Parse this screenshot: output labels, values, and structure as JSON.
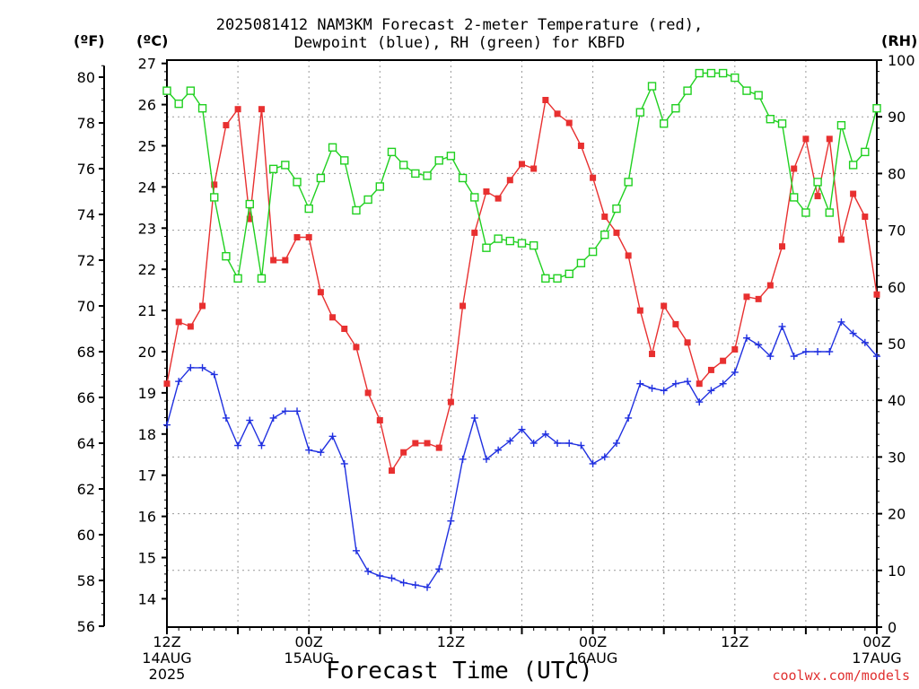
{
  "title": {
    "line1": "2025081412 NAM3KM Forecast 2-meter Temperature (red),",
    "line2": "Dewpoint (blue), RH (green) for KBFD"
  },
  "units": {
    "f": "(ºF)",
    "c": "(ºC)",
    "rh": "(RH)"
  },
  "xlabel": "Forecast Time (UTC)",
  "credit": "coolwx.com/models",
  "chart_data": {
    "type": "line",
    "x_axis": {
      "label": "Forecast Time (UTC)",
      "unit": "forecast hour",
      "range": [
        0,
        60
      ],
      "ticks": [
        {
          "hour": 0,
          "lines": [
            "12Z",
            "14AUG",
            "2025"
          ]
        },
        {
          "hour": 12,
          "lines": [
            "00Z",
            "15AUG"
          ]
        },
        {
          "hour": 24,
          "lines": [
            "12Z"
          ]
        },
        {
          "hour": 36,
          "lines": [
            "00Z",
            "16AUG"
          ]
        },
        {
          "hour": 48,
          "lines": [
            "12Z"
          ]
        },
        {
          "hour": 60,
          "lines": [
            "00Z",
            "17AUG"
          ]
        }
      ]
    },
    "y_axis_f": {
      "label": "(ºF)",
      "range": [
        56,
        80.5
      ],
      "ticks": [
        56,
        58,
        60,
        62,
        64,
        66,
        68,
        70,
        72,
        74,
        76,
        78,
        80
      ]
    },
    "y_axis_c": {
      "label": "(ºC)",
      "range": [
        13.33,
        27
      ],
      "ticks": [
        14,
        15,
        16,
        17,
        18,
        19,
        20,
        21,
        22,
        23,
        24,
        25,
        26,
        27
      ]
    },
    "y_axis_rh": {
      "label": "(RH)",
      "range": [
        0,
        100
      ],
      "ticks": [
        0,
        10,
        20,
        30,
        40,
        50,
        60,
        70,
        80,
        90,
        100
      ]
    },
    "grid": true,
    "series": [
      {
        "key": "temperature",
        "color": "#e83030",
        "marker": "filled-square",
        "axis": "f",
        "x": [
          0,
          1,
          2,
          3,
          4,
          5,
          6,
          7,
          8,
          9,
          10,
          11,
          12,
          13,
          14,
          15,
          16,
          17,
          18,
          19,
          20,
          21,
          22,
          23,
          24,
          25,
          26,
          27,
          28,
          29,
          30,
          31,
          32,
          33,
          34,
          35,
          36,
          37,
          38,
          39,
          40,
          41,
          42,
          43,
          44,
          45,
          46,
          47,
          48,
          49,
          50,
          51,
          52,
          53,
          54,
          55,
          56,
          57,
          58,
          59,
          60
        ],
        "values": [
          66.6,
          69.3,
          69.1,
          70.0,
          75.3,
          77.9,
          78.6,
          73.8,
          78.6,
          72.0,
          72.0,
          73.0,
          73.0,
          70.6,
          69.5,
          69.0,
          68.2,
          66.2,
          65.0,
          62.8,
          63.6,
          64.0,
          64.0,
          63.8,
          65.8,
          70.0,
          73.2,
          75.0,
          74.7,
          75.5,
          76.2,
          76.0,
          79.0,
          78.4,
          78.0,
          77.0,
          75.6,
          73.9,
          73.2,
          72.2,
          69.8,
          67.9,
          70.0,
          69.2,
          68.4,
          66.6,
          67.2,
          67.6,
          68.1,
          70.4,
          70.3,
          70.9,
          72.6,
          76.0,
          77.3,
          74.8,
          77.3,
          72.9,
          74.9,
          73.9,
          70.5
        ]
      },
      {
        "key": "dewpoint",
        "color": "#2030e0",
        "marker": "plus",
        "axis": "f",
        "x": [
          0,
          1,
          2,
          3,
          4,
          5,
          6,
          7,
          8,
          9,
          10,
          11,
          12,
          13,
          14,
          15,
          16,
          17,
          18,
          19,
          20,
          21,
          22,
          23,
          24,
          25,
          26,
          27,
          28,
          29,
          30,
          31,
          32,
          33,
          34,
          35,
          36,
          37,
          38,
          39,
          40,
          41,
          42,
          43,
          44,
          45,
          46,
          47,
          48,
          49,
          50,
          51,
          52,
          53,
          54,
          55,
          56,
          57,
          58,
          59,
          60
        ],
        "values": [
          64.8,
          66.7,
          67.3,
          67.3,
          67.0,
          65.1,
          63.9,
          65.0,
          63.9,
          65.1,
          65.4,
          65.4,
          63.7,
          63.6,
          64.3,
          63.1,
          59.3,
          58.4,
          58.2,
          58.1,
          57.9,
          57.8,
          57.7,
          58.5,
          60.6,
          63.3,
          65.1,
          63.3,
          63.7,
          64.1,
          64.6,
          64.0,
          64.4,
          64.0,
          64.0,
          63.9,
          63.1,
          63.4,
          64.0,
          65.1,
          66.6,
          66.4,
          66.3,
          66.6,
          66.7,
          65.8,
          66.3,
          66.6,
          67.1,
          68.6,
          68.3,
          67.8,
          69.1,
          67.8,
          68.0,
          68.0,
          68.0,
          69.3,
          68.8,
          68.4,
          67.8
        ]
      },
      {
        "key": "rh",
        "color": "#20d020",
        "marker": "open-square",
        "axis": "rh",
        "x": [
          0,
          1,
          2,
          3,
          4,
          5,
          6,
          7,
          8,
          9,
          10,
          11,
          12,
          13,
          14,
          15,
          16,
          17,
          18,
          19,
          20,
          21,
          22,
          23,
          24,
          25,
          26,
          27,
          28,
          29,
          30,
          31,
          32,
          33,
          34,
          35,
          36,
          37,
          38,
          39,
          40,
          41,
          42,
          43,
          44,
          45,
          46,
          47,
          48,
          49,
          50,
          51,
          52,
          53,
          54,
          55,
          56,
          57,
          58,
          59,
          60
        ],
        "values": [
          94.6,
          92.3,
          94.6,
          91.5,
          75.8,
          65.4,
          61.5,
          74.6,
          61.5,
          80.8,
          81.5,
          78.5,
          73.8,
          79.2,
          84.6,
          82.3,
          73.5,
          75.4,
          77.7,
          83.8,
          81.5,
          80.0,
          79.6,
          82.3,
          83.1,
          79.2,
          75.8,
          66.9,
          68.5,
          68.1,
          67.7,
          67.3,
          61.5,
          61.5,
          62.3,
          64.2,
          66.2,
          69.2,
          73.8,
          78.5,
          90.8,
          95.4,
          88.8,
          91.5,
          94.6,
          97.7,
          97.7,
          97.7,
          96.9,
          94.6,
          93.8,
          89.6,
          88.8,
          75.8,
          73.1,
          78.5,
          73.1,
          88.5,
          81.5,
          83.8,
          91.5
        ]
      }
    ]
  }
}
